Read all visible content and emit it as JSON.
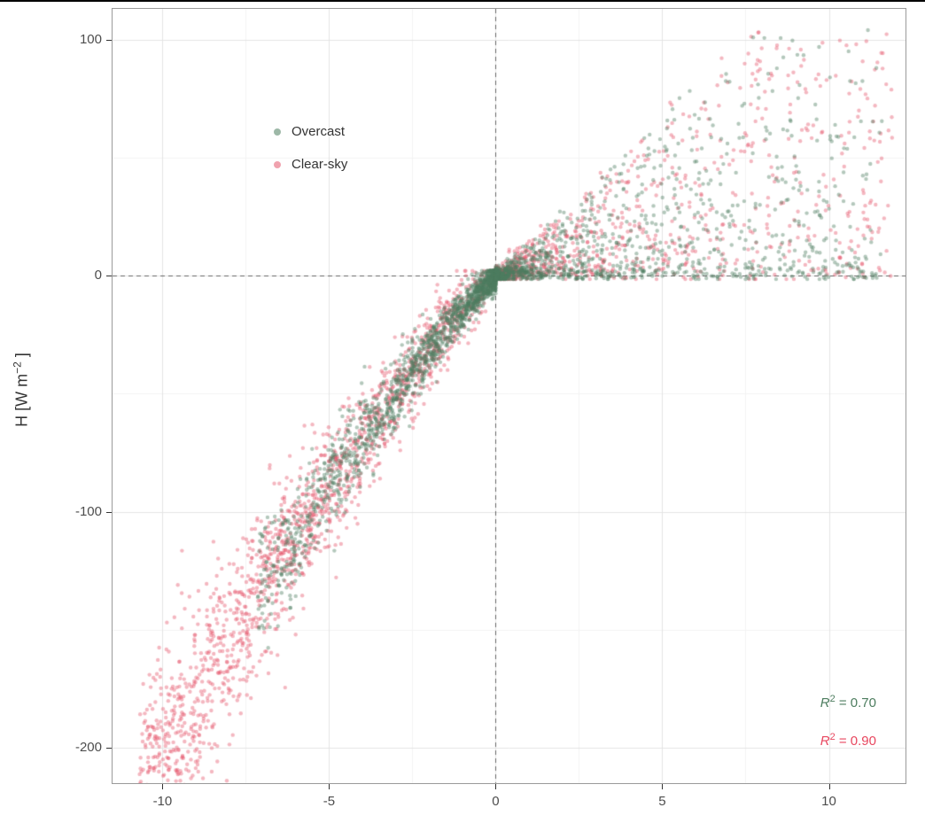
{
  "window": {
    "top_border_color": "#000000"
  },
  "chart_data": {
    "type": "scatter",
    "title": "",
    "xlabel": "",
    "ylabel": "H [W m⁻²]",
    "ylabel_parts": {
      "pre": "H [W m",
      "sup": "−2",
      "post": " ]"
    },
    "x_axis": {
      "min": -11.5,
      "max": 12.3,
      "ticks": [
        -10,
        -5,
        0,
        5,
        10
      ],
      "tick_labels": [
        "-10",
        "-5",
        "0",
        "5",
        "10"
      ],
      "minor": [
        -7.5,
        -2.5,
        2.5,
        7.5
      ]
    },
    "y_axis": {
      "min": -215,
      "max": 113,
      "ticks": [
        100,
        0,
        -100,
        -200
      ],
      "tick_labels": [
        "100",
        "0",
        "-100",
        "-200"
      ],
      "minor": [
        50,
        -50,
        -150
      ]
    },
    "grid": {
      "major_color": "#e4e4e4",
      "minor_color": "#f3f3f3",
      "on": true
    },
    "zero_lines": {
      "x": 0,
      "y": 0,
      "color": "#666666",
      "style": "dashed"
    },
    "point_style": {
      "radius": 2.2,
      "alpha": 0.42
    },
    "relationship_note": "H is near-linear negative branch H ≈ -14.2·|x|^1.15 for x<0; positive funnel bounded by H ≈ 13.5·x (cap ~103) for x>0",
    "curve": {
      "neg_coef": 14.2,
      "neg_pow": 1.15,
      "pos_slope": 13.5,
      "pos_cap": 103
    },
    "series": [
      {
        "name": "Overcast",
        "color": "#4d7d5f",
        "r2": "0.70",
        "generator": {
          "seed": 7,
          "neg": {
            "n": 1600,
            "x_scale": 7.2,
            "x_pow": 2.1,
            "noise_base": 3,
            "noise_slope": 1.4
          },
          "pos": {
            "n": 1150,
            "x_scale": 11.6,
            "x_pow": 2.1,
            "v_pow": 2.3,
            "noise": 1.5
          }
        }
      },
      {
        "name": "Clear-sky",
        "color": "#e4566b",
        "r2": "0.90",
        "generator": {
          "seed": 13,
          "neg": {
            "n": 1700,
            "x_scale": 10.7,
            "x_pow": 0.9,
            "noise_base": 5,
            "noise_slope": 1.7
          },
          "pos": {
            "n": 950,
            "x_scale": 11.9,
            "x_pow": 2.1,
            "v_pow": 1.7,
            "noise": 2
          }
        }
      }
    ],
    "legend_position": "upper-left-inside",
    "annotations": [
      {
        "prefix": "R",
        "sup": "2",
        "rest": " = 0.70",
        "color": "#4d7d5f"
      },
      {
        "prefix": "R",
        "sup": "2",
        "rest": " = 0.90",
        "color": "#e8475f"
      }
    ]
  }
}
